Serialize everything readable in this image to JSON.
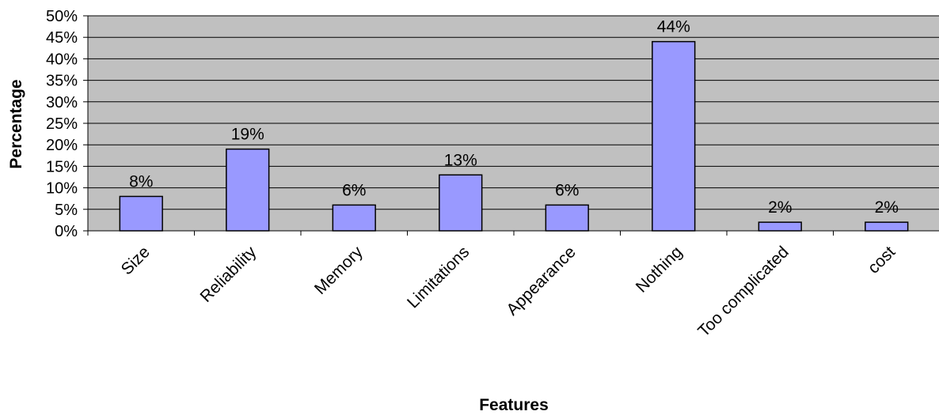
{
  "chart_data": {
    "type": "bar",
    "categories": [
      "Size",
      "Reliability",
      "Memory",
      "Limitations",
      "Appearance",
      "Nothing",
      "Too complicated",
      "cost"
    ],
    "values": [
      8,
      19,
      6,
      13,
      6,
      44,
      2,
      2
    ],
    "data_labels": [
      "8%",
      "19%",
      "6%",
      "13%",
      "6%",
      "44%",
      "2%",
      "2%"
    ],
    "y_ticks": [
      "0%",
      "5%",
      "10%",
      "15%",
      "20%",
      "25%",
      "30%",
      "35%",
      "40%",
      "45%",
      "50%"
    ],
    "xlabel": "Features",
    "ylabel": "Percentage",
    "ylim": [
      0,
      50
    ],
    "grid": true,
    "legend": "none",
    "colors": {
      "plot_background": "#c0c0c0",
      "bar_fill": "#9999ff",
      "bar_stroke": "#000000",
      "gridline": "#000000"
    }
  }
}
